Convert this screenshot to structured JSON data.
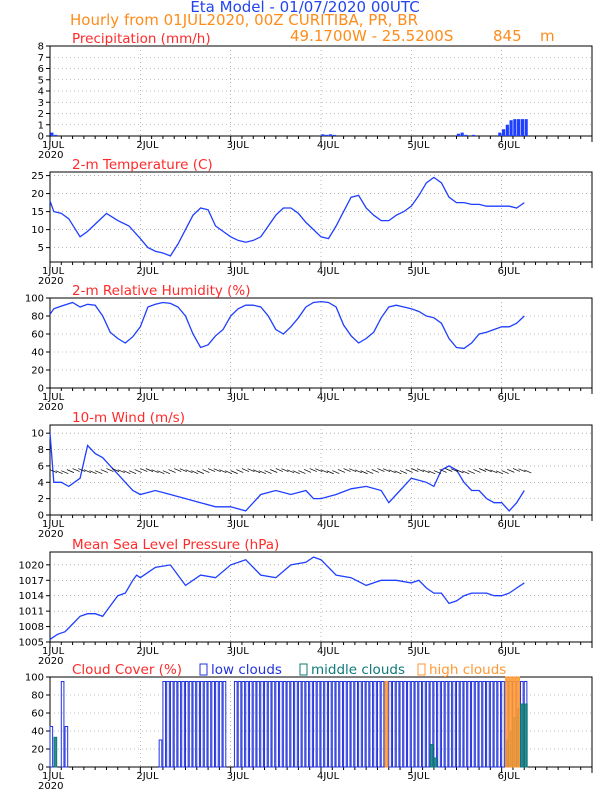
{
  "header": {
    "line1": "Eta Model - 01/07/2020 00UTC",
    "line2": "Hourly from 01JUL2020, 00Z  CURITIBA, PR, BR",
    "location": "49.1700W - 25.5200S",
    "elevation": "845",
    "elevation_unit": "m"
  },
  "x_axis": {
    "day_labels": [
      "1JUL",
      "2JUL",
      "3JUL",
      "4JUL",
      "5JUL",
      "6JUL"
    ],
    "year_label": "2020"
  },
  "colors": {
    "line": "#1f3fff",
    "title": "#ff2a2a",
    "header": "#2244ee",
    "subheader": "#ff8c1a",
    "low": "#2233dd",
    "middle": "#0e7a7a",
    "high": "#ff9933"
  },
  "chart_data": [
    {
      "id": "precip",
      "type": "bar",
      "title": "Precipitation (mm/h)",
      "ylim": [
        0,
        8
      ],
      "yticks": [
        "0",
        "1",
        "2",
        "3",
        "4",
        "5",
        "6",
        "7",
        "8"
      ],
      "x_unit": "hours since 01JUL2020 00Z",
      "x": [
        0,
        1,
        72,
        73,
        74,
        75,
        108,
        109,
        110,
        112,
        119,
        120,
        121,
        122,
        123,
        124,
        125,
        126
      ],
      "values": [
        0.3,
        0.1,
        0.15,
        0.1,
        0.15,
        0.1,
        0.2,
        0.3,
        0.1,
        0.1,
        0.3,
        0.6,
        1.0,
        1.4,
        1.5,
        1.5,
        1.5,
        1.5
      ]
    },
    {
      "id": "temperature",
      "type": "line",
      "title": "2-m Temperature (C)",
      "ylim": [
        1,
        26
      ],
      "yticks": [
        "5",
        "10",
        "15",
        "20",
        "25"
      ],
      "x": [
        0,
        1,
        3,
        5,
        8,
        10,
        13,
        15,
        18,
        21,
        24,
        26,
        28,
        30,
        32,
        34,
        36,
        38,
        40,
        42,
        44,
        46,
        48,
        50,
        52,
        54,
        56,
        58,
        60,
        62,
        64,
        66,
        68,
        70,
        72,
        74,
        76,
        78,
        80,
        82,
        84,
        86,
        88,
        90,
        92,
        94,
        96,
        98,
        100,
        102,
        104,
        106,
        108,
        110,
        112,
        114,
        116,
        118,
        120,
        122,
        124,
        126
      ],
      "values": [
        18,
        15,
        14.5,
        13,
        8,
        9.5,
        12.5,
        14.5,
        12.5,
        11,
        7.5,
        5,
        4,
        3.5,
        2.7,
        6,
        10,
        14,
        16,
        15.5,
        11,
        9.5,
        8,
        7,
        6.5,
        7,
        8,
        11,
        14,
        16,
        16,
        14.5,
        12,
        10,
        8,
        7.5,
        11,
        15,
        19,
        19.5,
        16,
        14,
        12.5,
        12.5,
        14,
        15,
        16.5,
        19.5,
        23,
        24.5,
        23,
        19,
        17.5,
        17.5,
        17,
        17,
        16.5,
        16.5,
        16.5,
        16.5,
        16,
        17.5
      ]
    },
    {
      "id": "humidity",
      "type": "line",
      "title": "2-m Relative Humidity (%)",
      "ylim": [
        0,
        100
      ],
      "yticks": [
        "0",
        "20",
        "40",
        "60",
        "80",
        "100"
      ],
      "x": [
        0,
        1,
        3,
        6,
        8,
        10,
        12,
        14,
        16,
        18,
        20,
        22,
        24,
        26,
        28,
        30,
        32,
        34,
        36,
        38,
        40,
        42,
        44,
        46,
        48,
        50,
        52,
        54,
        56,
        58,
        60,
        62,
        64,
        66,
        68,
        70,
        72,
        74,
        76,
        78,
        80,
        82,
        84,
        86,
        88,
        90,
        92,
        94,
        96,
        98,
        100,
        102,
        104,
        106,
        108,
        110,
        112,
        114,
        116,
        118,
        120,
        122,
        124,
        126
      ],
      "values": [
        82,
        88,
        91,
        95,
        90,
        93,
        92,
        80,
        62,
        55,
        50,
        57,
        68,
        90,
        93,
        95,
        94,
        90,
        80,
        60,
        45,
        48,
        58,
        65,
        80,
        88,
        92,
        92,
        90,
        80,
        65,
        60,
        68,
        78,
        90,
        95,
        96,
        95,
        90,
        70,
        58,
        50,
        55,
        62,
        78,
        90,
        92,
        90,
        88,
        85,
        80,
        78,
        72,
        55,
        45,
        44,
        50,
        60,
        62,
        65,
        68,
        68,
        72,
        80
      ]
    },
    {
      "id": "wind",
      "type": "line",
      "title": "10-m Wind (m/s)",
      "ylim": [
        0,
        11
      ],
      "yticks": [
        "0",
        "2",
        "4",
        "6",
        "8",
        "10"
      ],
      "x": [
        0,
        1,
        3,
        5,
        8,
        10,
        12,
        14,
        16,
        18,
        20,
        22,
        24,
        28,
        32,
        36,
        40,
        44,
        48,
        52,
        56,
        60,
        64,
        68,
        70,
        72,
        76,
        80,
        84,
        88,
        90,
        92,
        94,
        96,
        100,
        102,
        104,
        106,
        108,
        110,
        112,
        114,
        116,
        118,
        120,
        122,
        124,
        126
      ],
      "values": [
        10,
        4,
        4,
        3.5,
        4.5,
        8.5,
        7.5,
        7,
        6,
        5,
        4,
        3,
        2.5,
        3,
        2.5,
        2,
        1.5,
        1,
        1,
        0.5,
        2.5,
        3,
        2.5,
        3,
        2,
        2,
        2.5,
        3.2,
        3.5,
        3,
        1.5,
        2.5,
        3.5,
        4.5,
        4,
        3.5,
        5.5,
        6,
        5.5,
        4,
        3,
        3,
        2,
        1.5,
        1.5,
        0.5,
        1.5,
        3
      ]
    },
    {
      "id": "pressure",
      "type": "line",
      "title": "Mean Sea Level Pressure (hPa)",
      "ylim": [
        1005,
        1022.5
      ],
      "yticks": [
        "1005",
        "1008",
        "1011",
        "1014",
        "1017",
        "1020"
      ],
      "x": [
        0,
        2,
        4,
        6,
        8,
        10,
        12,
        14,
        16,
        18,
        20,
        22,
        23,
        24,
        28,
        32,
        36,
        40,
        44,
        48,
        52,
        56,
        60,
        64,
        68,
        70,
        72,
        76,
        80,
        84,
        88,
        92,
        96,
        98,
        100,
        102,
        104,
        106,
        108,
        110,
        112,
        114,
        116,
        118,
        120,
        122,
        124,
        126
      ],
      "values": [
        1005.5,
        1006.5,
        1007,
        1008.5,
        1010,
        1010.5,
        1010.5,
        1010,
        1012,
        1014,
        1014.5,
        1017,
        1018,
        1017.5,
        1019.5,
        1020,
        1016,
        1018,
        1017.5,
        1020,
        1021,
        1018,
        1017.5,
        1020,
        1020.5,
        1021.5,
        1021,
        1018,
        1017.5,
        1016,
        1017,
        1017,
        1016.5,
        1017,
        1015.5,
        1014.5,
        1014.5,
        1012.5,
        1013,
        1014,
        1014.5,
        1014.5,
        1014.5,
        1014,
        1014,
        1014.5,
        1015.5,
        1016.5
      ]
    },
    {
      "id": "clouds",
      "type": "bar",
      "title": "Cloud Cover (%)",
      "legend": [
        "low clouds",
        "middle clouds",
        "high clouds"
      ],
      "ylim": [
        0,
        100
      ],
      "yticks": [
        "0",
        "20",
        "40",
        "60",
        "80",
        "100"
      ],
      "series": [
        {
          "name": "low clouds",
          "x": [
            0,
            1,
            3,
            4,
            29,
            30,
            31,
            32,
            33,
            34,
            35,
            36,
            37,
            38,
            39,
            40,
            41,
            42,
            43,
            44,
            45,
            46,
            49,
            50,
            51,
            52,
            53,
            54,
            55,
            56,
            57,
            58,
            59,
            60,
            61,
            62,
            63,
            64,
            65,
            66,
            67,
            68,
            69,
            70,
            71,
            72,
            73,
            74,
            75,
            76,
            77,
            78,
            79,
            80,
            81,
            82,
            83,
            84,
            85,
            86,
            87,
            88,
            89,
            90,
            91,
            92,
            93,
            94,
            95,
            96,
            97,
            98,
            99,
            100,
            101,
            102,
            103,
            104,
            105,
            106,
            107,
            108,
            109,
            110,
            111,
            112,
            113,
            114,
            115,
            116,
            117,
            118,
            119,
            120,
            121,
            122,
            123,
            124,
            125,
            126
          ],
          "values": [
            45,
            0,
            95,
            45,
            30,
            95,
            95,
            95,
            95,
            95,
            95,
            95,
            95,
            95,
            95,
            95,
            95,
            95,
            95,
            95,
            95,
            95,
            95,
            95,
            95,
            95,
            95,
            95,
            95,
            95,
            95,
            95,
            95,
            95,
            95,
            95,
            95,
            95,
            95,
            95,
            95,
            95,
            95,
            95,
            95,
            95,
            95,
            95,
            95,
            95,
            95,
            95,
            95,
            95,
            95,
            95,
            95,
            95,
            95,
            95,
            95,
            95,
            95,
            95,
            95,
            95,
            95,
            95,
            95,
            95,
            95,
            95,
            95,
            95,
            95,
            95,
            95,
            95,
            95,
            95,
            95,
            95,
            95,
            95,
            95,
            95,
            95,
            95,
            95,
            95,
            95,
            95,
            95,
            95,
            95,
            95,
            95,
            95,
            95,
            95
          ]
        },
        {
          "name": "middle clouds",
          "x": [
            1,
            101,
            102,
            121,
            122,
            123,
            124,
            125,
            126
          ],
          "values": [
            33,
            25,
            10,
            30,
            40,
            55,
            65,
            70,
            70
          ]
        },
        {
          "name": "high clouds",
          "x": [
            89,
            121,
            122,
            123,
            124
          ],
          "values": [
            95,
            100,
            100,
            100,
            100
          ]
        }
      ]
    }
  ]
}
